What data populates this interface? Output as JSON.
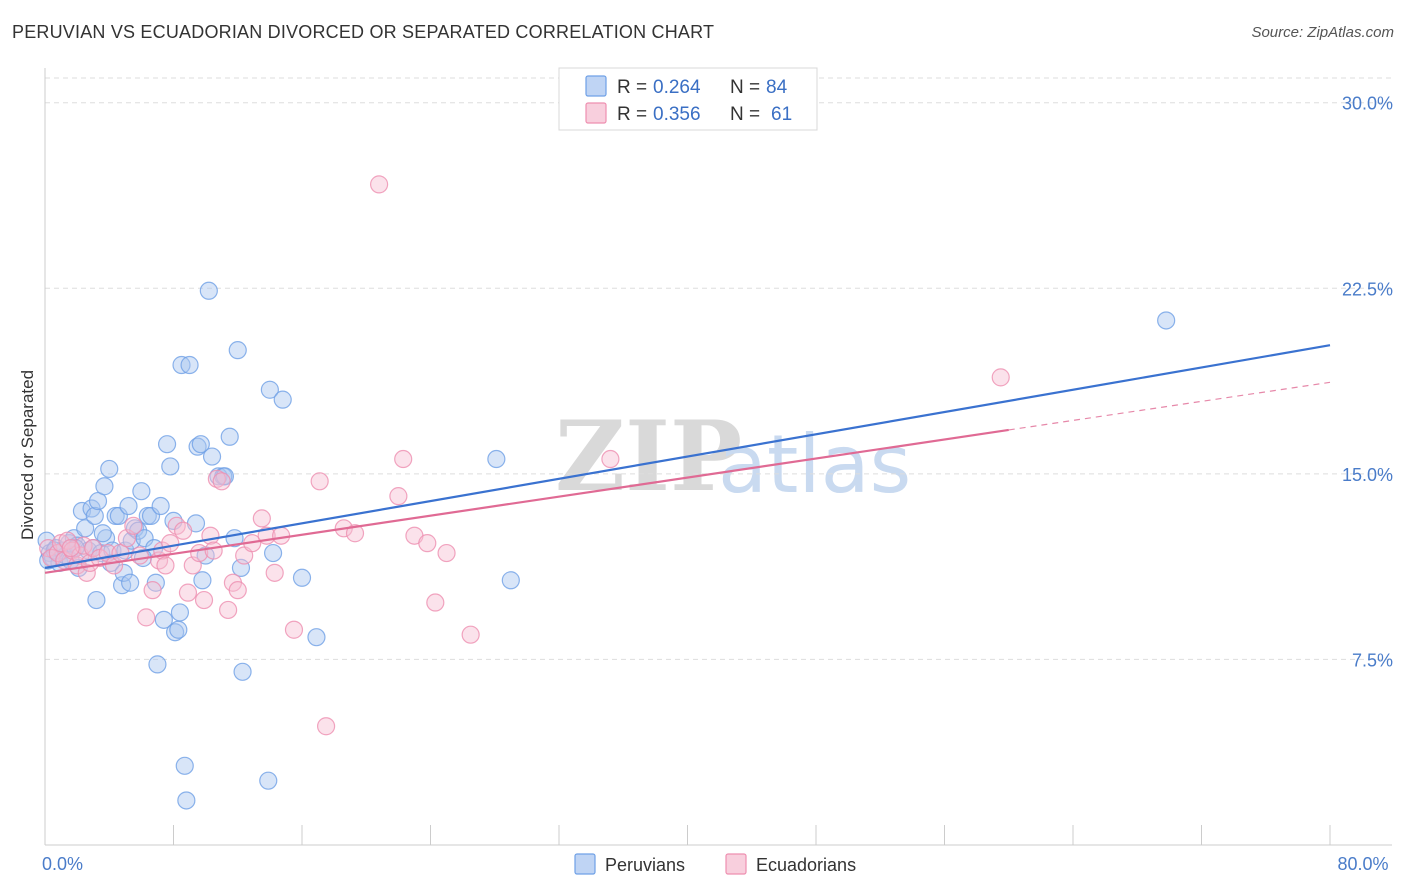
{
  "title": "PERUVIAN VS ECUADORIAN DIVORCED OR SEPARATED CORRELATION CHART",
  "source": "Source: ZipAtlas.com",
  "watermark": {
    "zip": "ZIP",
    "atlas": "atlas"
  },
  "colors": {
    "peruvians": "#6fa0e6",
    "peruvians_fill": "#a9c6f0",
    "peruvians_line": "#3a72d0",
    "ecuadorians": "#ee8fb0",
    "ecuadorians_fill": "#f6bfd2",
    "ecuadorians_line": "#e06a94",
    "grid": "#dddddd",
    "tick_label": "#4a7cc9"
  },
  "chart_data": {
    "type": "scatter",
    "title": "PERUVIAN VS ECUADORIAN DIVORCED OR SEPARATED CORRELATION CHART",
    "xlabel": "",
    "ylabel": "Divorced or Separated",
    "xlim": [
      0,
      80
    ],
    "ylim": [
      0,
      31
    ],
    "x_ticks": [
      0,
      80
    ],
    "x_tick_labels": [
      "0.0%",
      "80.0%"
    ],
    "y_ticks": [
      7.5,
      15.0,
      22.5,
      30.0
    ],
    "y_tick_labels": [
      "7.5%",
      "15.0%",
      "22.5%",
      "30.0%"
    ],
    "grid": true,
    "legend_position": "top-center",
    "legend": [
      {
        "name": "Peruvians",
        "r_label": "R =",
        "r": "0.264",
        "n_label": "N =",
        "n": "84"
      },
      {
        "name": "Ecuadorians",
        "r_label": "R =",
        "r": "0.356",
        "n_label": "N =",
        "n": "61"
      }
    ],
    "series": [
      {
        "name": "Peruvians",
        "trend": {
          "x": [
            0,
            80
          ],
          "y": [
            11.2,
            20.2
          ],
          "dashed_after": null
        },
        "points": [
          [
            0.1,
            12.3
          ],
          [
            0.3,
            11.8
          ],
          [
            0.5,
            11.6
          ],
          [
            0.7,
            12.0
          ],
          [
            0.9,
            11.4
          ],
          [
            1.1,
            11.9
          ],
          [
            1.3,
            11.7
          ],
          [
            1.5,
            12.2
          ],
          [
            1.6,
            11.5
          ],
          [
            1.8,
            12.4
          ],
          [
            2.0,
            12.1
          ],
          [
            2.1,
            11.2
          ],
          [
            2.3,
            13.5
          ],
          [
            2.5,
            12.8
          ],
          [
            2.7,
            11.9
          ],
          [
            2.9,
            13.6
          ],
          [
            3.0,
            12.0
          ],
          [
            3.1,
            13.3
          ],
          [
            3.2,
            9.9
          ],
          [
            3.3,
            13.9
          ],
          [
            3.5,
            11.8
          ],
          [
            3.7,
            14.5
          ],
          [
            3.8,
            12.4
          ],
          [
            4.0,
            15.2
          ],
          [
            4.1,
            11.4
          ],
          [
            4.2,
            11.9
          ],
          [
            4.4,
            13.3
          ],
          [
            4.6,
            13.3
          ],
          [
            4.8,
            10.5
          ],
          [
            4.9,
            11.0
          ],
          [
            5.0,
            11.9
          ],
          [
            5.2,
            13.7
          ],
          [
            5.3,
            10.6
          ],
          [
            5.4,
            12.3
          ],
          [
            5.6,
            12.8
          ],
          [
            5.8,
            12.7
          ],
          [
            6.0,
            14.3
          ],
          [
            6.2,
            12.4
          ],
          [
            6.4,
            13.3
          ],
          [
            6.6,
            13.3
          ],
          [
            6.8,
            12.0
          ],
          [
            6.9,
            10.6
          ],
          [
            7.0,
            7.3
          ],
          [
            7.2,
            13.7
          ],
          [
            7.4,
            9.1
          ],
          [
            7.6,
            16.2
          ],
          [
            7.8,
            15.3
          ],
          [
            8.0,
            13.1
          ],
          [
            8.1,
            8.6
          ],
          [
            8.3,
            8.7
          ],
          [
            8.4,
            9.4
          ],
          [
            8.5,
            19.4
          ],
          [
            8.7,
            3.2
          ],
          [
            8.8,
            1.8
          ],
          [
            9.0,
            19.4
          ],
          [
            9.4,
            13.0
          ],
          [
            9.5,
            16.1
          ],
          [
            9.7,
            16.2
          ],
          [
            10.0,
            11.7
          ],
          [
            10.2,
            22.4
          ],
          [
            10.4,
            15.7
          ],
          [
            10.8,
            14.9
          ],
          [
            11.1,
            14.9
          ],
          [
            11.2,
            14.9
          ],
          [
            11.5,
            16.5
          ],
          [
            11.8,
            12.4
          ],
          [
            12.0,
            20.0
          ],
          [
            12.2,
            11.2
          ],
          [
            12.3,
            7.0
          ],
          [
            13.9,
            2.6
          ],
          [
            14.0,
            18.4
          ],
          [
            14.2,
            11.8
          ],
          [
            14.8,
            18.0
          ],
          [
            16.0,
            10.8
          ],
          [
            16.9,
            8.4
          ],
          [
            28.1,
            15.6
          ],
          [
            29.0,
            10.7
          ],
          [
            69.8,
            21.2
          ],
          [
            0.2,
            11.5
          ],
          [
            1.9,
            12.0
          ],
          [
            9.8,
            10.7
          ],
          [
            6.1,
            11.6
          ],
          [
            3.6,
            12.6
          ],
          [
            0.6,
            11.9
          ]
        ]
      },
      {
        "name": "Ecuadorians",
        "trend": {
          "x": [
            0,
            80
          ],
          "y": [
            11.0,
            18.7
          ],
          "dashed_after": 60.0
        },
        "points": [
          [
            0.2,
            12.0
          ],
          [
            0.4,
            11.6
          ],
          [
            0.8,
            11.8
          ],
          [
            1.0,
            12.2
          ],
          [
            1.2,
            11.5
          ],
          [
            1.4,
            12.3
          ],
          [
            1.7,
            11.9
          ],
          [
            2.0,
            11.3
          ],
          [
            2.2,
            11.7
          ],
          [
            2.4,
            12.1
          ],
          [
            2.6,
            11.0
          ],
          [
            2.8,
            11.4
          ],
          [
            3.0,
            12.0
          ],
          [
            3.4,
            11.6
          ],
          [
            3.9,
            11.8
          ],
          [
            4.3,
            11.3
          ],
          [
            4.7,
            11.8
          ],
          [
            5.1,
            12.4
          ],
          [
            5.5,
            12.9
          ],
          [
            5.9,
            11.7
          ],
          [
            6.3,
            9.2
          ],
          [
            6.7,
            10.3
          ],
          [
            7.1,
            11.5
          ],
          [
            7.3,
            11.9
          ],
          [
            7.5,
            11.3
          ],
          [
            7.8,
            12.2
          ],
          [
            8.2,
            12.9
          ],
          [
            8.6,
            12.7
          ],
          [
            8.9,
            10.2
          ],
          [
            9.2,
            11.3
          ],
          [
            9.6,
            11.8
          ],
          [
            9.9,
            9.9
          ],
          [
            10.3,
            12.5
          ],
          [
            10.5,
            11.9
          ],
          [
            10.7,
            14.8
          ],
          [
            11.0,
            14.7
          ],
          [
            11.4,
            9.5
          ],
          [
            11.7,
            10.6
          ],
          [
            12.0,
            10.3
          ],
          [
            12.4,
            11.7
          ],
          [
            12.9,
            12.2
          ],
          [
            13.5,
            13.2
          ],
          [
            13.8,
            12.5
          ],
          [
            14.3,
            11.0
          ],
          [
            14.7,
            12.5
          ],
          [
            15.5,
            8.7
          ],
          [
            17.1,
            14.7
          ],
          [
            17.5,
            4.8
          ],
          [
            18.6,
            12.8
          ],
          [
            19.3,
            12.6
          ],
          [
            20.8,
            26.7
          ],
          [
            22.0,
            14.1
          ],
          [
            22.3,
            15.6
          ],
          [
            23.0,
            12.5
          ],
          [
            23.8,
            12.2
          ],
          [
            24.3,
            9.8
          ],
          [
            25.0,
            11.8
          ],
          [
            26.5,
            8.5
          ],
          [
            35.2,
            15.6
          ],
          [
            59.5,
            18.9
          ],
          [
            1.6,
            12.0
          ]
        ]
      }
    ]
  },
  "bottom_legend": [
    {
      "name": "Peruvians"
    },
    {
      "name": "Ecuadorians"
    }
  ]
}
